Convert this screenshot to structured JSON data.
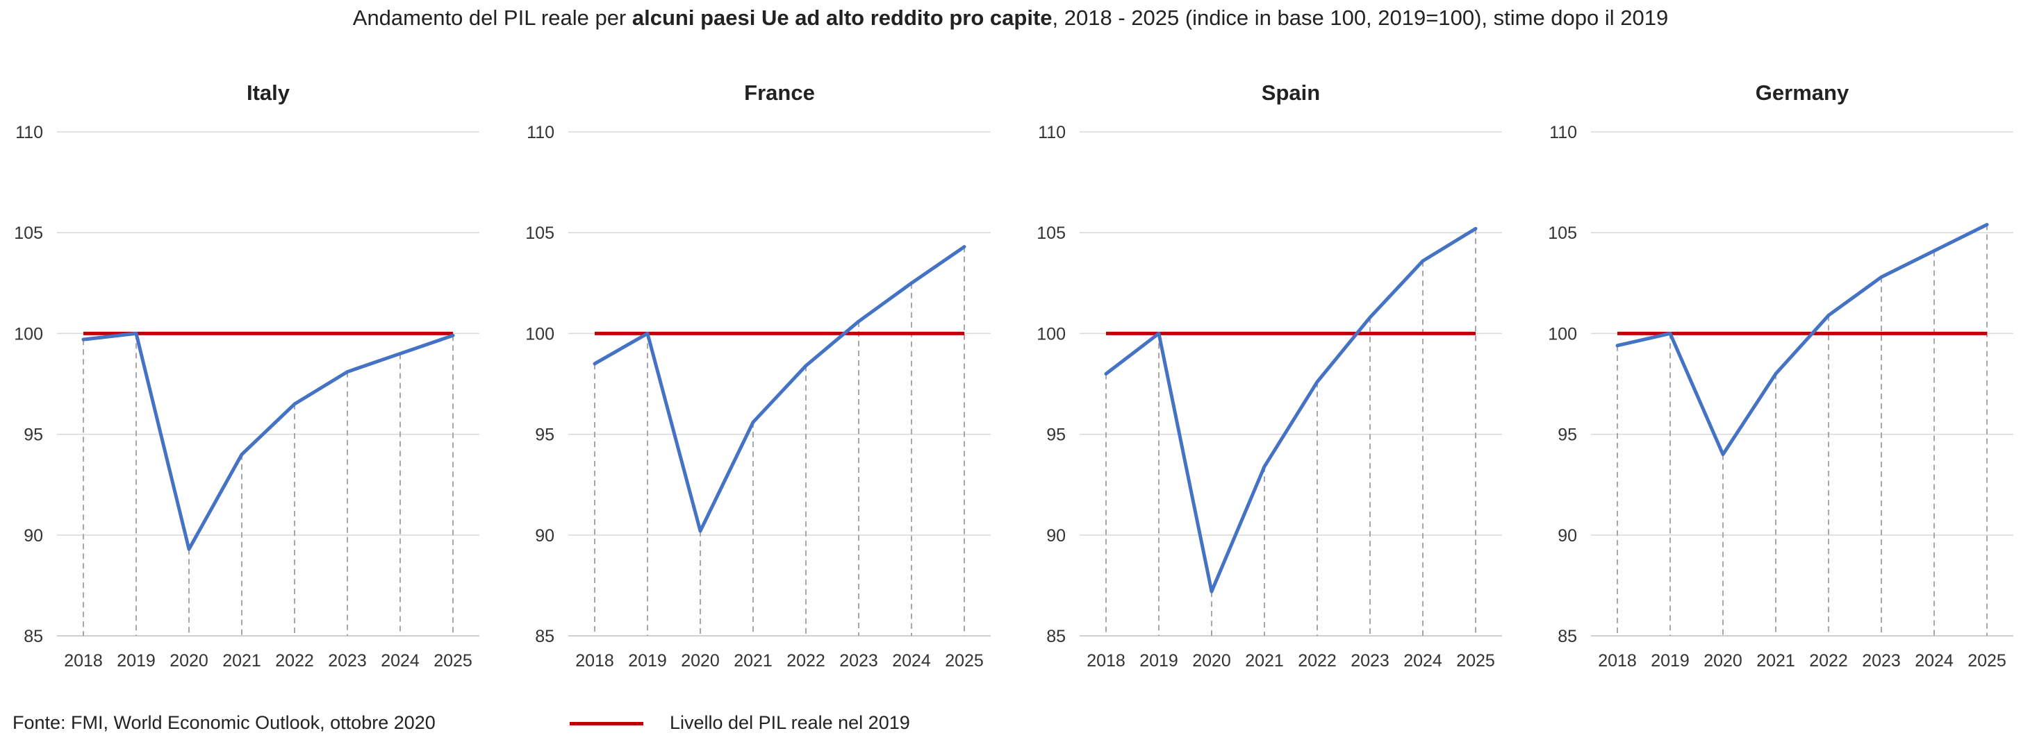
{
  "title": {
    "pre": "Andamento del PIL reale per ",
    "bold": "alcuni paesi Ue ad alto reddito pro capite",
    "post": ", 2018 - 2025 (indice in base 100, 2019=100), stime dopo il 2019"
  },
  "source": "Fonte: FMI, World Economic Outlook, ottobre 2020",
  "legend": {
    "label": "Livello del PIL reale nel 2019",
    "color": "#c00000"
  },
  "colors": {
    "series": "#4472c4",
    "reference": "#c00000",
    "grid": "#d9d9d9",
    "dash": "#a6a6a6"
  },
  "chart_data": [
    {
      "type": "line",
      "title": "Italy",
      "x": [
        "2018",
        "2019",
        "2020",
        "2021",
        "2022",
        "2023",
        "2024",
        "2025"
      ],
      "values": [
        99.7,
        100,
        89.3,
        94.0,
        96.5,
        98.1,
        99.0,
        99.9
      ],
      "reference": 100,
      "ylim": [
        85,
        110
      ],
      "yticks": [
        85,
        90,
        95,
        100,
        105,
        110
      ],
      "grid": true
    },
    {
      "type": "line",
      "title": "France",
      "x": [
        "2018",
        "2019",
        "2020",
        "2021",
        "2022",
        "2023",
        "2024",
        "2025"
      ],
      "values": [
        98.5,
        100,
        90.2,
        95.6,
        98.4,
        100.6,
        102.5,
        104.3
      ],
      "reference": 100,
      "ylim": [
        85,
        110
      ],
      "yticks": [
        85,
        90,
        95,
        100,
        105,
        110
      ],
      "grid": true
    },
    {
      "type": "line",
      "title": "Spain",
      "x": [
        "2018",
        "2019",
        "2020",
        "2021",
        "2022",
        "2023",
        "2024",
        "2025"
      ],
      "values": [
        98.0,
        100,
        87.2,
        93.4,
        97.6,
        100.8,
        103.6,
        105.2
      ],
      "reference": 100,
      "ylim": [
        85,
        110
      ],
      "yticks": [
        85,
        90,
        95,
        100,
        105,
        110
      ],
      "grid": true
    },
    {
      "type": "line",
      "title": "Germany",
      "x": [
        "2018",
        "2019",
        "2020",
        "2021",
        "2022",
        "2023",
        "2024",
        "2025"
      ],
      "values": [
        99.4,
        100,
        94.0,
        98.0,
        100.9,
        102.8,
        104.1,
        105.4
      ],
      "reference": 100,
      "ylim": [
        85,
        110
      ],
      "yticks": [
        85,
        90,
        95,
        100,
        105,
        110
      ],
      "grid": true
    }
  ]
}
